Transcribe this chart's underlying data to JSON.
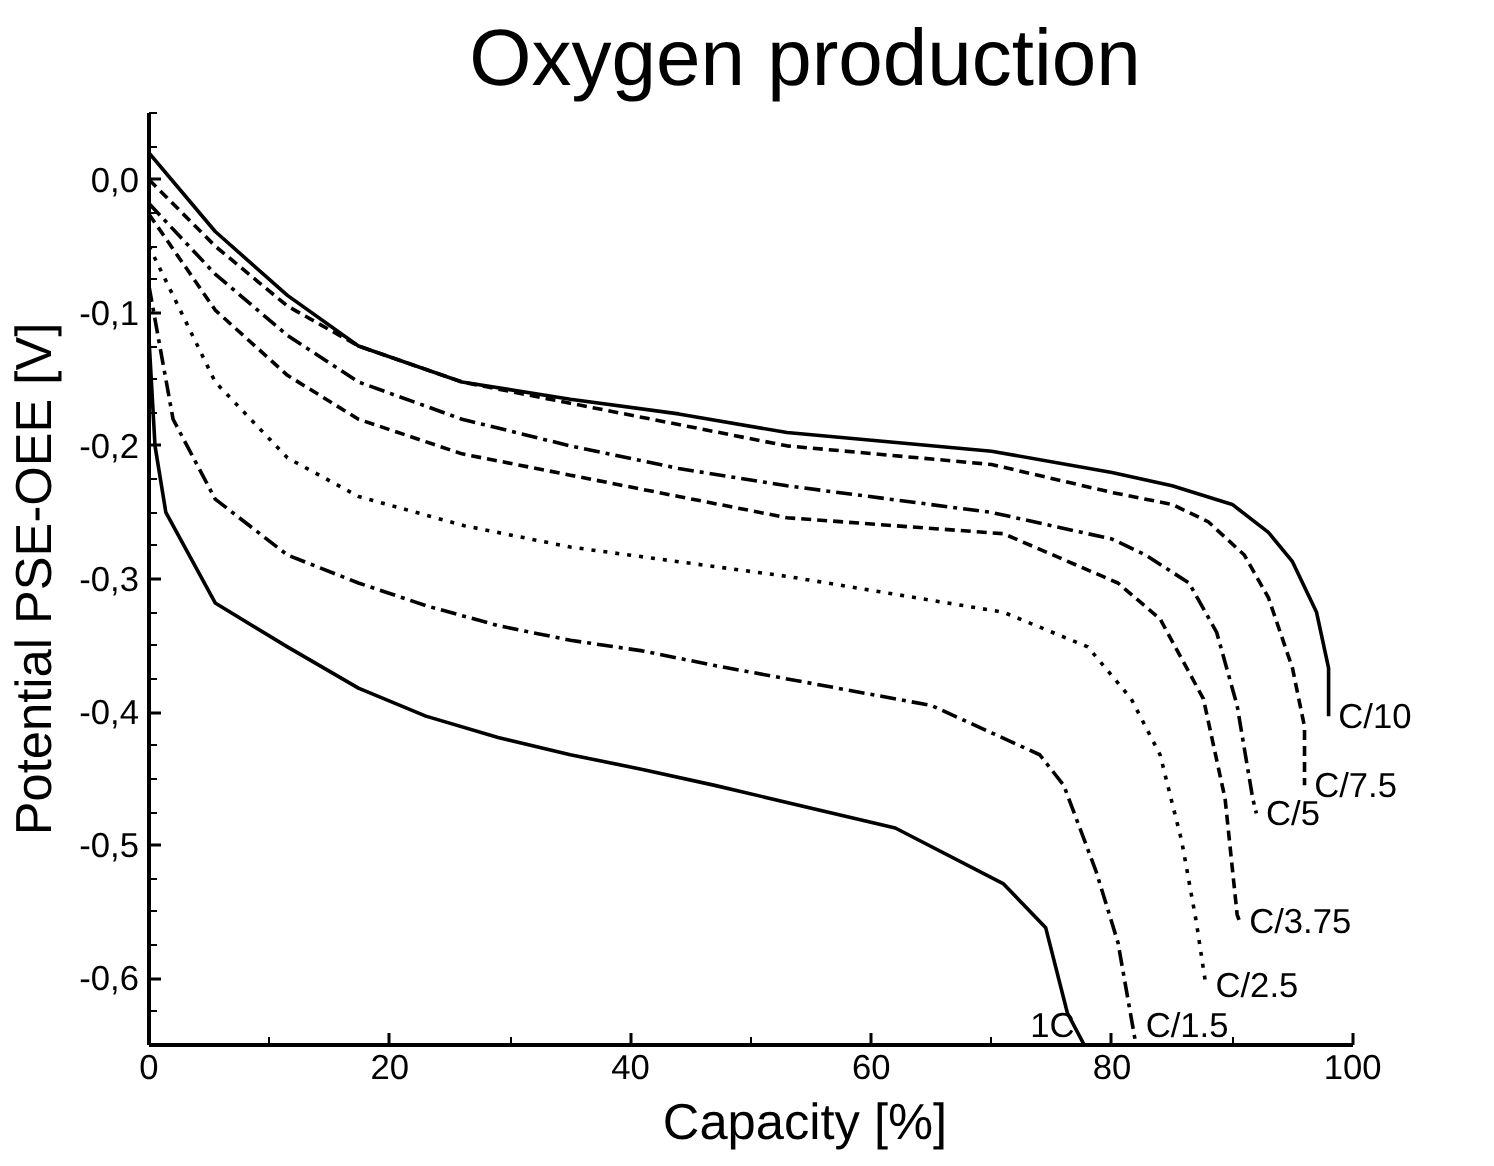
{
  "chart_data": {
    "type": "line",
    "title": "Oxygen production",
    "xlabel": "Capacity [%]",
    "ylabel": "Potential PSE-OEE [V]",
    "xlim": [
      0,
      100
    ],
    "ylim": [
      -0.65,
      0.05
    ],
    "xticks": [
      0,
      20,
      40,
      60,
      80,
      100
    ],
    "yticks": [
      {
        "value": 0,
        "label": "0,0"
      },
      {
        "value": -0.1,
        "label": "-0,1"
      },
      {
        "value": -0.2,
        "label": "-0,2"
      },
      {
        "value": -0.3,
        "label": "-0,3"
      },
      {
        "value": -0.4,
        "label": "-0,4"
      },
      {
        "value": -0.5,
        "label": "-0,5"
      },
      {
        "value": -0.6,
        "label": "-0,6"
      }
    ],
    "grid": false,
    "marker": "none",
    "series": [
      {
        "name": "C/10",
        "color": "#000000",
        "line_style": "solid",
        "x": [
          0,
          5.5,
          11.5,
          17.4,
          26,
          35,
          44,
          53,
          70,
          80,
          85,
          90,
          93,
          95,
          97,
          98,
          98
        ],
        "values": [
          0.02,
          -0.039,
          -0.087,
          -0.125,
          -0.152,
          -0.165,
          -0.176,
          -0.19,
          -0.204,
          -0.22,
          -0.23,
          -0.244,
          -0.265,
          -0.287,
          -0.325,
          -0.367,
          -0.403
        ]
      },
      {
        "name": "C/7.5",
        "color": "#000000",
        "line_style": "dashed",
        "x": [
          0,
          5.5,
          11.5,
          17.4,
          26,
          35,
          44,
          53,
          70,
          80,
          85,
          88,
          91,
          93,
          95,
          96,
          96
        ],
        "values": [
          0.0,
          -0.05,
          -0.095,
          -0.125,
          -0.152,
          -0.168,
          -0.184,
          -0.2,
          -0.214,
          -0.235,
          -0.244,
          -0.257,
          -0.282,
          -0.314,
          -0.367,
          -0.411,
          -0.455
        ]
      },
      {
        "name": "C/5",
        "color": "#000000",
        "line_style": "dashdot",
        "x": [
          0,
          5.5,
          11.5,
          17.4,
          26,
          35,
          44,
          53,
          70,
          80,
          82.8,
          86.4,
          88.7,
          90.4,
          91.7,
          92
        ],
        "values": [
          -0.018,
          -0.071,
          -0.117,
          -0.152,
          -0.18,
          -0.2,
          -0.217,
          -0.23,
          -0.25,
          -0.27,
          -0.282,
          -0.303,
          -0.34,
          -0.395,
          -0.465,
          -0.476
        ]
      },
      {
        "name": "C/3.75",
        "color": "#000000",
        "line_style": "dashed",
        "x": [
          0,
          5.5,
          11.5,
          17.4,
          26,
          35,
          44,
          53,
          71,
          80.5,
          84,
          87.6,
          89.4,
          90.4,
          90.6
        ],
        "values": [
          -0.026,
          -0.098,
          -0.147,
          -0.18,
          -0.206,
          -0.222,
          -0.238,
          -0.254,
          -0.266,
          -0.303,
          -0.33,
          -0.39,
          -0.465,
          -0.552,
          -0.557
        ]
      },
      {
        "name": "C/2.5",
        "color": "#000000",
        "line_style": "dotted",
        "x": [
          0,
          5.5,
          11.5,
          17.4,
          26.2,
          35,
          44,
          53,
          71,
          78,
          81.6,
          84,
          85.8,
          87,
          87.8
        ],
        "values": [
          -0.05,
          -0.152,
          -0.209,
          -0.238,
          -0.26,
          -0.276,
          -0.287,
          -0.298,
          -0.325,
          -0.351,
          -0.39,
          -0.432,
          -0.497,
          -0.557,
          -0.605
        ]
      },
      {
        "name": "C/1.5",
        "color": "#000000",
        "line_style": "dashdot",
        "x": [
          0,
          2,
          5.5,
          11.5,
          17.4,
          23,
          29,
          35,
          41,
          47,
          65,
          74,
          76,
          78.7,
          80.5,
          82
        ],
        "values": [
          -0.08,
          -0.18,
          -0.24,
          -0.282,
          -0.303,
          -0.32,
          -0.335,
          -0.346,
          -0.354,
          -0.365,
          -0.395,
          -0.432,
          -0.455,
          -0.52,
          -0.573,
          -0.65
        ]
      },
      {
        "name": "1C",
        "color": "#000000",
        "line_style": "solid",
        "x": [
          0,
          0.5,
          1.4,
          5.5,
          11.5,
          17.4,
          23,
          29,
          35,
          41,
          47,
          62,
          71,
          74.5,
          76.3,
          77.7
        ],
        "values": [
          -0.12,
          -0.2,
          -0.25,
          -0.318,
          -0.351,
          -0.382,
          -0.403,
          -0.419,
          -0.432,
          -0.443,
          -0.455,
          -0.487,
          -0.529,
          -0.562,
          -0.626,
          -0.65
        ]
      }
    ]
  }
}
